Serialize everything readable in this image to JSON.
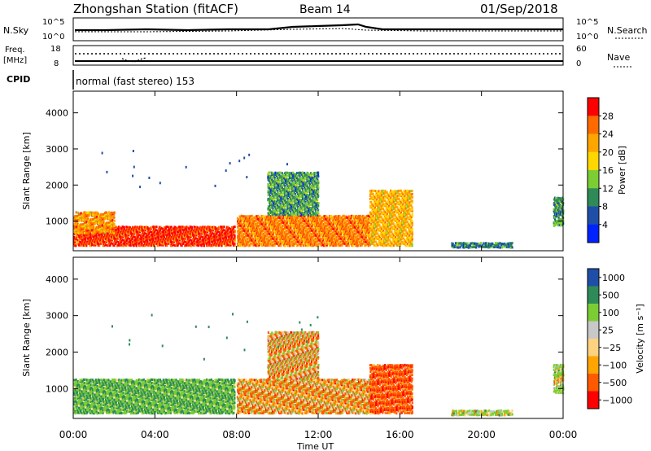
{
  "header": {
    "station": "Zhongshan Station (fitACF)",
    "beam": "Beam 14",
    "date": "01/Sep/2018"
  },
  "panels": {
    "nsky": {
      "left_label": "N.Sky",
      "right_label": "N.Search",
      "left_ticks": [
        "10^5",
        "10^0"
      ],
      "right_ticks": [
        "10^5",
        "10^0"
      ]
    },
    "freq": {
      "left_label_top": "Freq.",
      "left_label_bottom": "[MHz]",
      "right_label": "Nave",
      "left_ticks": [
        "18",
        "8"
      ],
      "right_ticks": [
        "60",
        "0"
      ]
    },
    "cpid": {
      "label": "CPID",
      "text": "normal (fast stereo) 153"
    }
  },
  "colors": {
    "power_scale": [
      "#0022ff",
      "#1f4ea8",
      "#2e8b57",
      "#7ccd34",
      "#ffd700",
      "#ffa500",
      "#ff6a00",
      "#ff0000"
    ],
    "velocity_scale": [
      "#ff0000",
      "#ff5a00",
      "#ffa500",
      "#ffd27f",
      "#c8c8c8",
      "#7ccd34",
      "#2e8b57",
      "#1f4ea8"
    ]
  },
  "chart_data": [
    {
      "type": "heatmap",
      "name": "power",
      "ylabel": "Slant Range [km]",
      "xlabel": "",
      "x_ticks": [
        "00:00",
        "04:00",
        "08:00",
        "12:00",
        "16:00",
        "20:00",
        "00:00"
      ],
      "y_ticks": [
        "1000",
        "2000",
        "3000",
        "4000"
      ],
      "ylim": [
        180,
        4600
      ],
      "xlim_hours": [
        0,
        24
      ],
      "colorbar_label": "Power [dB]",
      "colorbar_ticks": [
        "4",
        "8",
        "12",
        "16",
        "20",
        "24",
        "28"
      ],
      "regions": [
        {
          "t0": 0.0,
          "t1": 7.9,
          "r0": 350,
          "r1": 900,
          "value": 28
        },
        {
          "t0": 0.0,
          "t1": 2.0,
          "r0": 700,
          "r1": 1300,
          "value": 22
        },
        {
          "t0": 8.0,
          "t1": 14.5,
          "r0": 350,
          "r1": 1200,
          "value": 24
        },
        {
          "t0": 9.5,
          "t1": 12.0,
          "r0": 1200,
          "r1": 2400,
          "value": 10
        },
        {
          "t0": 14.5,
          "t1": 16.6,
          "r0": 350,
          "r1": 1900,
          "value": 20
        },
        {
          "t0": 18.5,
          "t1": 21.5,
          "r0": 300,
          "r1": 450,
          "value": 8
        },
        {
          "t0": 23.5,
          "t1": 24.0,
          "r0": 900,
          "r1": 1700,
          "value": 10
        }
      ]
    },
    {
      "type": "heatmap",
      "name": "velocity",
      "ylabel": "Slant Range [km]",
      "xlabel": "Time UT",
      "x_ticks": [
        "00:00",
        "04:00",
        "08:00",
        "12:00",
        "16:00",
        "20:00",
        "00:00"
      ],
      "y_ticks": [
        "1000",
        "2000",
        "3000",
        "4000"
      ],
      "ylim": [
        180,
        4600
      ],
      "xlim_hours": [
        0,
        24
      ],
      "colorbar_label": "Velocity [m s⁻¹]",
      "colorbar_ticks": [
        "1000",
        "500",
        "100",
        "25",
        "−25",
        "−100",
        "−500",
        "−1000"
      ],
      "regions": [
        {
          "t0": 0.0,
          "t1": 7.9,
          "r0": 350,
          "r1": 1300,
          "value": 400
        },
        {
          "t0": 8.0,
          "t1": 14.5,
          "r0": 350,
          "r1": 1300,
          "value": -150
        },
        {
          "t0": 9.5,
          "t1": 12.0,
          "r0": 1300,
          "r1": 2600,
          "value": -100
        },
        {
          "t0": 14.5,
          "t1": 16.6,
          "r0": 350,
          "r1": 1700,
          "value": -400
        },
        {
          "t0": 18.5,
          "t1": 21.5,
          "r0": 300,
          "r1": 450,
          "value": 120
        },
        {
          "t0": 23.5,
          "t1": 24.0,
          "r0": 900,
          "r1": 1700,
          "value": 120
        }
      ]
    }
  ]
}
